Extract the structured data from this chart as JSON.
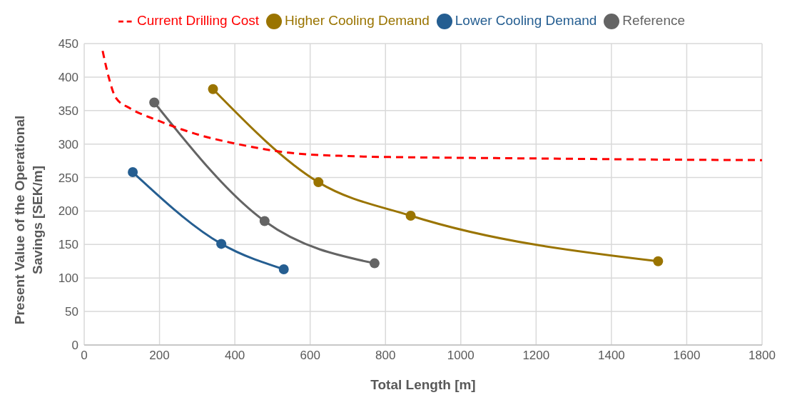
{
  "chart_data": {
    "type": "line",
    "xlabel": "Total Length [m]",
    "ylabel": "Present Value of the Operational Savings [SEK/m]",
    "xlim": [
      0,
      1800
    ],
    "xticks": [
      0,
      200,
      400,
      600,
      800,
      1000,
      1200,
      1400,
      1600,
      1800
    ],
    "ylim": [
      0,
      450
    ],
    "yticks": [
      0,
      50,
      100,
      150,
      200,
      250,
      300,
      350,
      400,
      450
    ],
    "grid": true,
    "legend": "top",
    "marker": "circle",
    "line_style": "solid",
    "series": [
      {
        "name": "Reference",
        "color": "#646464",
        "x": [
          186,
          479,
          771
        ],
        "values": [
          362,
          185,
          122
        ]
      },
      {
        "name": "Higher Cooling Demand",
        "color": "#9a7400",
        "x": [
          342,
          622,
          867,
          1524
        ],
        "values": [
          382,
          243,
          193,
          125
        ]
      },
      {
        "name": "Lower Cooling Demand",
        "color": "#255e91",
        "x": [
          129,
          364,
          530
        ],
        "values": [
          258,
          151,
          113
        ]
      },
      {
        "name": "Current Drilling Cost",
        "color": "#ff0000",
        "marker": "none",
        "line_style": "dashed",
        "x": [
          49,
          65,
          84,
          123,
          192,
          309,
          407,
          544,
          700,
          896,
          1092,
          1288,
          1483,
          1800
        ],
        "values": [
          439,
          400,
          369,
          353,
          336,
          313,
          300,
          287,
          282,
          280,
          279,
          278,
          277,
          276
        ]
      }
    ]
  }
}
